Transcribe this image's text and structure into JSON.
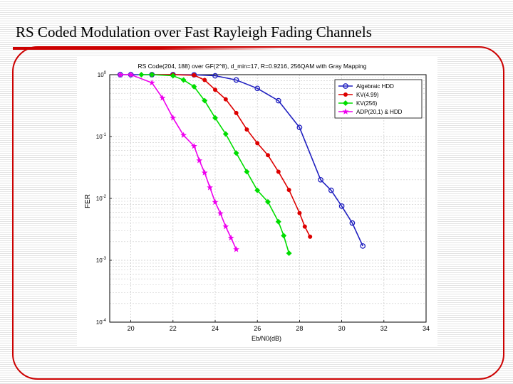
{
  "slide": {
    "title": "RS Coded Modulation over Fast Rayleigh Fading Channels"
  },
  "chart_data": {
    "type": "line",
    "title": "RS Code(204, 188) over GF(2^8), d_min=17, R=0.9216, 256QAM with Gray Mapping",
    "xlabel": "Eb/N0(dB)",
    "ylabel": "FER",
    "xlim": [
      19,
      34
    ],
    "ylim": [
      0.0001,
      1
    ],
    "yscale": "log",
    "grid": true,
    "legend_position": "top-right",
    "x_ticks": [
      "20",
      "22",
      "24",
      "26",
      "28",
      "30",
      "32",
      "34"
    ],
    "y_ticks": [
      "10^0",
      "10^-1",
      "10^-2",
      "10^-3",
      "10^-4"
    ],
    "series": [
      {
        "name": "Algebraic HDD",
        "color": "#2020c0",
        "marker": "circle",
        "x": [
          19.5,
          20,
          21,
          22,
          23,
          24,
          25,
          26,
          27,
          28,
          29,
          29.5,
          30,
          30.5,
          31
        ],
        "y": [
          1,
          1,
          1,
          1,
          0.995,
          0.96,
          0.82,
          0.6,
          0.38,
          0.14,
          0.02,
          0.0135,
          0.0075,
          0.004,
          0.0017
        ]
      },
      {
        "name": "KV(4.99)",
        "color": "#dd0000",
        "marker": "dot",
        "x": [
          21,
          22,
          23,
          23.5,
          24,
          24.5,
          25,
          25.5,
          26,
          26.5,
          27,
          27.5,
          28,
          28.25,
          28.5
        ],
        "y": [
          1,
          1,
          0.98,
          0.82,
          0.57,
          0.4,
          0.24,
          0.13,
          0.078,
          0.05,
          0.027,
          0.0137,
          0.0058,
          0.0035,
          0.0024
        ]
      },
      {
        "name": "KV(256)",
        "color": "#00dd00",
        "marker": "diamond",
        "x": [
          20.5,
          21,
          22,
          22.5,
          23,
          23.5,
          24,
          24.5,
          25,
          25.5,
          26,
          26.5,
          27,
          27.25,
          27.5
        ],
        "y": [
          1,
          1,
          0.96,
          0.82,
          0.64,
          0.38,
          0.2,
          0.11,
          0.054,
          0.027,
          0.0135,
          0.0088,
          0.0042,
          0.0025,
          0.0013
        ]
      },
      {
        "name": "ADP(20,1) & HDD",
        "color": "#ee00ee",
        "marker": "star",
        "x": [
          19.5,
          20,
          21,
          21.5,
          22,
          22.5,
          23,
          23.25,
          23.5,
          23.75,
          24,
          24.25,
          24.5,
          24.75,
          25
        ],
        "y": [
          1,
          1,
          0.74,
          0.42,
          0.2,
          0.105,
          0.07,
          0.041,
          0.026,
          0.015,
          0.0087,
          0.0057,
          0.0035,
          0.0023,
          0.0015
        ]
      }
    ]
  }
}
